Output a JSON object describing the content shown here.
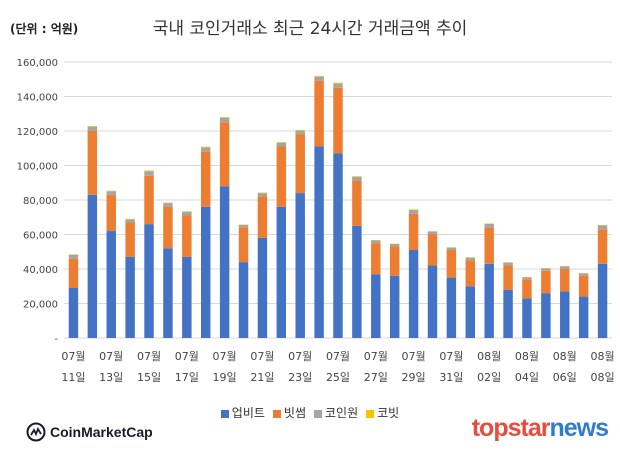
{
  "chart_data": {
    "type": "bar",
    "stacked": true,
    "title": "국내 코인거래소 최근 24시간 거래금액 추이",
    "unit_label": "(단위 : 억원)",
    "ylim": [
      0,
      160000
    ],
    "yticks": [
      {
        "value": 0,
        "label": "-"
      },
      {
        "value": 20000,
        "label": "20,000"
      },
      {
        "value": 40000,
        "label": "40,000"
      },
      {
        "value": 60000,
        "label": "60,000"
      },
      {
        "value": 80000,
        "label": "80,000"
      },
      {
        "value": 100000,
        "label": "100,000"
      },
      {
        "value": 120000,
        "label": "120,000"
      },
      {
        "value": 140000,
        "label": "140,000"
      },
      {
        "value": 160000,
        "label": "160,000"
      }
    ],
    "categories": [
      "07월 11일",
      "07월 12일",
      "07월 13일",
      "07월 14일",
      "07월 15일",
      "07월 16일",
      "07월 17일",
      "07월 18일",
      "07월 19일",
      "07월 20일",
      "07월 21일",
      "07월 22일",
      "07월 23일",
      "07월 24일",
      "07월 25일",
      "07월 26일",
      "07월 27일",
      "07월 28일",
      "07월 29일",
      "07월 30일",
      "07월 31일",
      "08월 01일",
      "08월 02일",
      "08월 03일",
      "08월 04일",
      "08월 05일",
      "08월 06일",
      "08월 07일",
      "08월 08일"
    ],
    "label_categories": [
      {
        "month": "07월",
        "day": "11일"
      },
      {
        "month": "07월",
        "day": "13일"
      },
      {
        "month": "07월",
        "day": "15일"
      },
      {
        "month": "07월",
        "day": "17일"
      },
      {
        "month": "07월",
        "day": "19일"
      },
      {
        "month": "07월",
        "day": "21일"
      },
      {
        "month": "07월",
        "day": "23일"
      },
      {
        "month": "07월",
        "day": "25일"
      },
      {
        "month": "07월",
        "day": "27일"
      },
      {
        "month": "07월",
        "day": "29일"
      },
      {
        "month": "07월",
        "day": "31일"
      },
      {
        "month": "08월",
        "day": "02일"
      },
      {
        "month": "08월",
        "day": "04일"
      },
      {
        "month": "08월",
        "day": "06일"
      },
      {
        "month": "08월",
        "day": "08일"
      }
    ],
    "series": [
      {
        "name": "업비트",
        "color": "#4472c4",
        "values": [
          29000,
          83000,
          62000,
          47000,
          66000,
          52000,
          47000,
          76000,
          88000,
          44000,
          58000,
          76000,
          84000,
          111000,
          107000,
          65000,
          37000,
          36000,
          51000,
          42000,
          35000,
          30000,
          43000,
          28000,
          23000,
          26000,
          27000,
          24000,
          43000
        ]
      },
      {
        "name": "빗썸",
        "color": "#ed7d31",
        "values": [
          17000,
          37000,
          21000,
          20000,
          28000,
          24000,
          24000,
          32000,
          37000,
          20000,
          24000,
          35000,
          34000,
          38000,
          38000,
          26000,
          18000,
          17000,
          21000,
          18000,
          16000,
          15000,
          21000,
          14000,
          11000,
          13000,
          13000,
          12000,
          20000
        ]
      },
      {
        "name": "코인원",
        "color": "#a5a5a5",
        "values": [
          2200,
          2500,
          2100,
          1800,
          2700,
          2200,
          2200,
          2500,
          2700,
          1600,
          2000,
          2200,
          2200,
          2500,
          2500,
          2400,
          1600,
          1500,
          2200,
          1700,
          1400,
          1600,
          2100,
          1700,
          1200,
          1400,
          1600,
          1400,
          2200
        ]
      },
      {
        "name": "코빗",
        "color": "#ffc000",
        "values": [
          300,
          400,
          300,
          300,
          400,
          300,
          300,
          400,
          400,
          200,
          300,
          400,
          400,
          500,
          500,
          400,
          200,
          200,
          300,
          200,
          200,
          200,
          300,
          200,
          200,
          200,
          200,
          200,
          300
        ]
      }
    ]
  },
  "logos": {
    "cmc": "CoinMarketCap",
    "ts_part1": "topstar",
    "ts_part2": "news"
  }
}
